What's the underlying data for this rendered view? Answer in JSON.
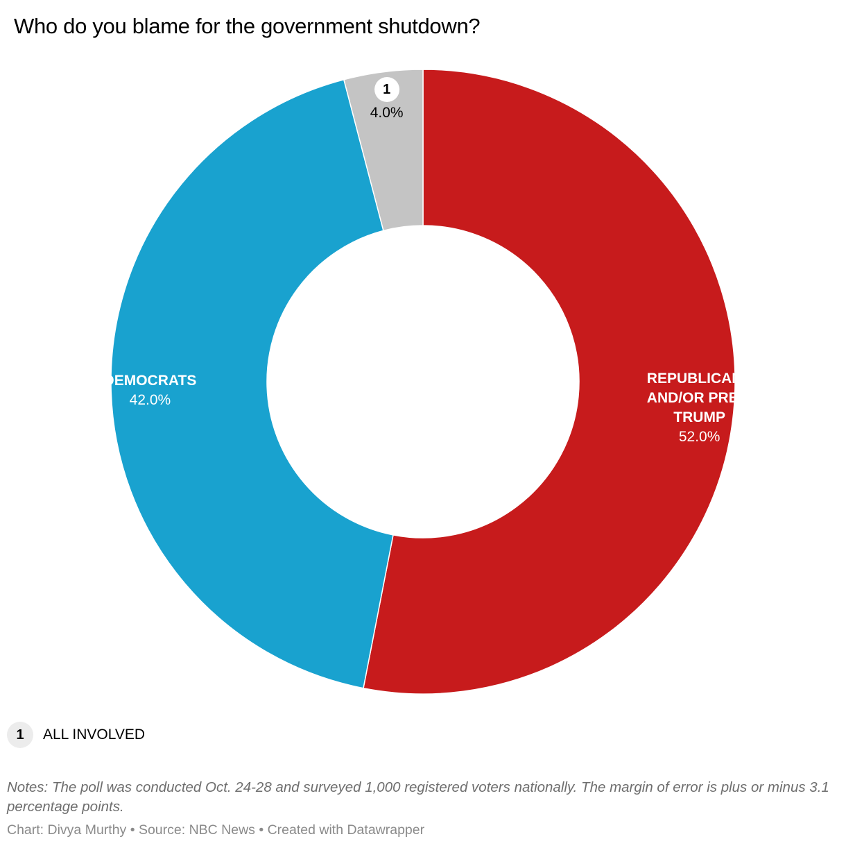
{
  "title": "Who do you blame for the government shutdown?",
  "chart_data": {
    "type": "pie",
    "title": "Who do you blame for the government shutdown?",
    "slices": [
      {
        "label": "REPUBLICANS AND/OR PRES. TRUMP",
        "label_lines": [
          "REPUBLICANS",
          "AND/OR PRES.",
          "TRUMP"
        ],
        "value": 52.0,
        "display": "52.0%",
        "color": "#c71b1c",
        "text": "light"
      },
      {
        "label": "DEMOCRATS",
        "label_lines": [
          "DEMOCRATS"
        ],
        "value": 42.0,
        "display": "42.0%",
        "color": "#19a2cf",
        "text": "light"
      },
      {
        "label": "ALL INVOLVED",
        "marker": "1",
        "value": 4.0,
        "display": "4.0%",
        "color": "#c4c4c4",
        "text": "dark"
      }
    ],
    "donut": true,
    "start_angle_deg": 0,
    "direction": "clockwise"
  },
  "legend": {
    "marker": "1",
    "label": "ALL INVOLVED"
  },
  "notes": "Notes: The poll was conducted Oct. 24-28 and surveyed 1,000 registered voters nationally. The margin of error is plus or minus 3.1 percentage points.",
  "credit": "Chart: Divya Murthy • Source: NBC News • Created with Datawrapper"
}
